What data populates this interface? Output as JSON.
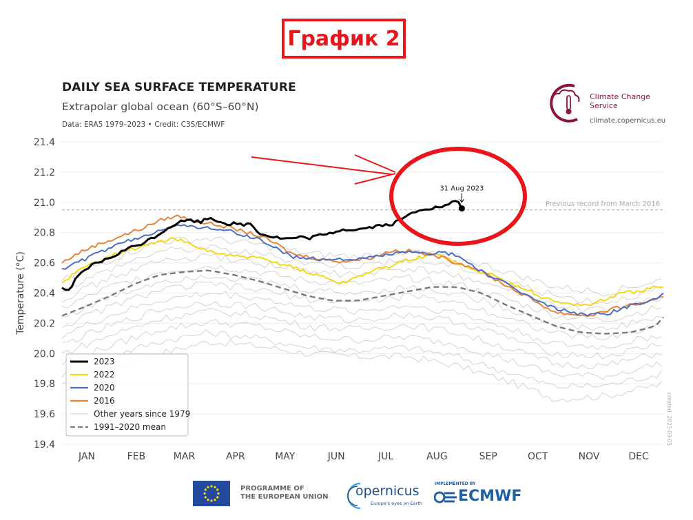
{
  "banner": {
    "text": "График 2",
    "color": "#e8161b"
  },
  "header": {
    "title": "DAILY SEA SURFACE TEMPERATURE",
    "subtitle": "Extrapolar global ocean (60°S–60°N)",
    "source": "Data: ERA5 1979–2023 • Credit: C3S/ECMWF"
  },
  "brand": {
    "c3s_name": "Climate Change Service",
    "c3s_url": "climate.copernicus.eu",
    "brand_color": "#8c1538"
  },
  "footer": {
    "eu_text_line1": "PROGRAMME OF",
    "eu_text_line2": "THE EUROPEAN UNION",
    "copernicus": "opernicus",
    "copernicus_tag": "Europe's eyes on Earth",
    "ecmwf_implemented": "IMPLEMENTED BY",
    "ecmwf": "ECMWF"
  },
  "chart_data": {
    "type": "line",
    "title": "DAILY SEA SURFACE TEMPERATURE",
    "subtitle": "Extrapolar global ocean (60°S–60°N)",
    "xlabel": "",
    "ylabel": "Temperature (°C)",
    "ylim": [
      19.4,
      21.4
    ],
    "yticks": [
      19.4,
      19.6,
      19.8,
      20.0,
      20.2,
      20.4,
      20.6,
      20.8,
      21.0,
      21.2,
      21.4
    ],
    "ytick_labels": [
      "19.4",
      "19.6",
      "19.8",
      "20.0",
      "20.2",
      "20.4",
      "20.6",
      "20.8",
      "21.0",
      "21.2",
      "21.4"
    ],
    "xlim": [
      1,
      365
    ],
    "months": [
      "JAN",
      "FEB",
      "MAR",
      "APR",
      "MAY",
      "JUN",
      "JUL",
      "AUG",
      "SEP",
      "OCT",
      "NOV",
      "DEC"
    ],
    "month_mid_days": [
      16,
      46,
      75,
      106,
      136,
      167,
      197,
      228,
      259,
      289,
      320,
      350
    ],
    "grid": true,
    "legend_position": "bottom-left",
    "watermark": "created: 2023-09-05",
    "reference_line": {
      "y": 20.95,
      "label": "Previous record from March 2016",
      "color": "#aaaaaa"
    },
    "annotation": {
      "text": "31 Aug 2023",
      "x": 243,
      "y": 20.96
    },
    "highlight": {
      "type": "ellipse",
      "color": "#e8161b"
    },
    "series": [
      {
        "name": "2023",
        "color": "#000000",
        "x": [
          1,
          5,
          10,
          15,
          20,
          25,
          30,
          35,
          40,
          45,
          50,
          55,
          60,
          65,
          70,
          75,
          80,
          85,
          90,
          95,
          100,
          105,
          110,
          115,
          120,
          125,
          130,
          135,
          140,
          145,
          150,
          155,
          160,
          165,
          170,
          175,
          180,
          185,
          190,
          195,
          200,
          205,
          210,
          215,
          220,
          225,
          230,
          235,
          240,
          243
        ],
        "y": [
          20.43,
          20.42,
          20.5,
          20.55,
          20.59,
          20.61,
          20.63,
          20.66,
          20.69,
          20.71,
          20.73,
          20.76,
          20.79,
          20.83,
          20.86,
          20.88,
          20.88,
          20.87,
          20.9,
          20.88,
          20.86,
          20.86,
          20.85,
          20.86,
          20.8,
          20.78,
          20.77,
          20.76,
          20.76,
          20.77,
          20.76,
          20.78,
          20.78,
          20.8,
          20.82,
          20.82,
          20.82,
          20.83,
          20.84,
          20.85,
          20.85,
          20.88,
          20.91,
          20.94,
          20.96,
          20.96,
          20.97,
          20.98,
          21.02,
          20.96
        ]
      },
      {
        "name": "2022",
        "color": "#f3d915",
        "x": [
          1,
          10,
          20,
          30,
          40,
          50,
          60,
          70,
          75,
          80,
          90,
          100,
          110,
          120,
          130,
          140,
          150,
          160,
          170,
          180,
          190,
          200,
          210,
          220,
          230,
          240,
          250,
          260,
          270,
          280,
          290,
          300,
          310,
          320,
          330,
          340,
          350,
          360,
          365
        ],
        "y": [
          20.47,
          20.54,
          20.6,
          20.65,
          20.68,
          20.71,
          20.74,
          20.76,
          20.74,
          20.71,
          20.68,
          20.65,
          20.64,
          20.63,
          20.6,
          20.58,
          20.53,
          20.51,
          20.46,
          20.51,
          20.55,
          20.58,
          20.62,
          20.64,
          20.66,
          20.6,
          20.55,
          20.53,
          20.47,
          20.44,
          20.38,
          20.34,
          20.33,
          20.32,
          20.36,
          20.4,
          20.41,
          20.44,
          20.43
        ]
      },
      {
        "name": "2020",
        "color": "#4a6fc4",
        "x": [
          1,
          10,
          20,
          30,
          40,
          50,
          60,
          70,
          75,
          80,
          90,
          100,
          110,
          120,
          130,
          140,
          150,
          160,
          170,
          180,
          190,
          200,
          210,
          220,
          230,
          240,
          250,
          260,
          270,
          280,
          290,
          300,
          310,
          320,
          330,
          340,
          350,
          360,
          365
        ],
        "y": [
          20.56,
          20.6,
          20.65,
          20.7,
          20.74,
          20.77,
          20.82,
          20.85,
          20.84,
          20.84,
          20.83,
          20.82,
          20.78,
          20.76,
          20.7,
          20.64,
          20.63,
          20.62,
          20.63,
          20.62,
          20.64,
          20.66,
          20.67,
          20.66,
          20.67,
          20.65,
          20.58,
          20.51,
          20.46,
          20.4,
          20.34,
          20.3,
          20.27,
          20.26,
          20.26,
          20.3,
          20.33,
          20.36,
          20.4
        ]
      },
      {
        "name": "2016",
        "color": "#e8833a",
        "x": [
          1,
          10,
          20,
          30,
          40,
          50,
          60,
          70,
          75,
          80,
          90,
          100,
          110,
          120,
          130,
          140,
          150,
          160,
          170,
          180,
          190,
          200,
          210,
          220,
          230,
          240,
          250,
          260,
          270,
          280,
          290,
          300,
          310,
          320,
          330,
          340,
          350,
          360,
          365
        ],
        "y": [
          20.6,
          20.66,
          20.71,
          20.75,
          20.79,
          20.83,
          20.88,
          20.91,
          20.9,
          20.88,
          20.86,
          20.84,
          20.81,
          20.78,
          20.73,
          20.66,
          20.64,
          20.62,
          20.61,
          20.62,
          20.64,
          20.68,
          20.68,
          20.66,
          20.64,
          20.6,
          20.57,
          20.51,
          20.45,
          20.39,
          20.33,
          20.27,
          20.26,
          20.25,
          20.28,
          20.31,
          20.33,
          20.35,
          20.37
        ]
      },
      {
        "name": "1991-2020 mean",
        "color": "#7a7a7a",
        "x": [
          1,
          15,
          30,
          45,
          60,
          75,
          90,
          105,
          120,
          135,
          150,
          165,
          180,
          195,
          210,
          225,
          240,
          255,
          270,
          285,
          300,
          315,
          330,
          345,
          360,
          365
        ],
        "y": [
          20.25,
          20.31,
          20.38,
          20.46,
          20.52,
          20.54,
          20.55,
          20.52,
          20.48,
          20.43,
          20.38,
          20.35,
          20.35,
          20.38,
          20.41,
          20.44,
          20.44,
          20.4,
          20.32,
          20.25,
          20.18,
          20.14,
          20.13,
          20.14,
          20.18,
          20.24
        ]
      }
    ],
    "other_years": {
      "name": "Other years since 1979",
      "color": "#d2d2d2",
      "x": [
        1,
        30,
        60,
        90,
        120,
        150,
        180,
        210,
        240,
        270,
        300,
        330,
        365
      ],
      "curves": [
        [
          19.78,
          19.9,
          20.0,
          20.08,
          20.05,
          20.0,
          19.98,
          19.98,
          19.92,
          19.82,
          19.7,
          19.72,
          19.8
        ],
        [
          19.86,
          19.98,
          20.08,
          20.14,
          20.1,
          20.04,
          20.02,
          20.04,
          19.98,
          19.88,
          19.78,
          19.79,
          19.87
        ],
        [
          19.93,
          20.05,
          20.16,
          20.21,
          20.18,
          20.11,
          20.09,
          20.11,
          20.06,
          19.96,
          19.86,
          19.85,
          19.94
        ],
        [
          20.0,
          20.12,
          20.23,
          20.28,
          20.25,
          20.18,
          20.16,
          20.19,
          20.14,
          20.04,
          19.93,
          19.92,
          20.01
        ],
        [
          20.06,
          20.18,
          20.29,
          20.34,
          20.31,
          20.24,
          20.22,
          20.26,
          20.21,
          20.11,
          20.0,
          19.98,
          20.07
        ],
        [
          20.12,
          20.25,
          20.35,
          20.4,
          20.37,
          20.3,
          20.28,
          20.32,
          20.27,
          20.17,
          20.06,
          20.04,
          20.13
        ],
        [
          20.18,
          20.31,
          20.42,
          20.46,
          20.42,
          20.36,
          20.34,
          20.38,
          20.34,
          20.24,
          20.13,
          20.1,
          20.19
        ],
        [
          20.24,
          20.37,
          20.48,
          20.52,
          20.48,
          20.42,
          20.4,
          20.44,
          20.4,
          20.3,
          20.19,
          20.16,
          20.25
        ],
        [
          20.3,
          20.44,
          20.54,
          20.58,
          20.54,
          20.48,
          20.46,
          20.5,
          20.46,
          20.36,
          20.25,
          20.22,
          20.31
        ],
        [
          20.36,
          20.5,
          20.61,
          20.64,
          20.6,
          20.54,
          20.52,
          20.56,
          20.52,
          20.42,
          20.31,
          20.28,
          20.37
        ],
        [
          20.42,
          20.56,
          20.68,
          20.7,
          20.66,
          20.6,
          20.58,
          20.62,
          20.58,
          20.48,
          20.38,
          20.34,
          20.43
        ],
        [
          20.48,
          20.62,
          20.74,
          20.76,
          20.72,
          20.66,
          20.64,
          20.68,
          20.64,
          20.54,
          20.44,
          20.4,
          20.49
        ]
      ]
    },
    "legend": [
      {
        "label": "2023",
        "color": "#000000",
        "style": "solid-thick"
      },
      {
        "label": "2022",
        "color": "#f3d915",
        "style": "solid"
      },
      {
        "label": "2020",
        "color": "#4a6fc4",
        "style": "solid"
      },
      {
        "label": "2016",
        "color": "#e8833a",
        "style": "solid"
      },
      {
        "label": "Other years since 1979",
        "color": "#d2d2d2",
        "style": "thin"
      },
      {
        "label": "1991–2020 mean",
        "color": "#7a7a7a",
        "style": "dashed"
      }
    ]
  }
}
